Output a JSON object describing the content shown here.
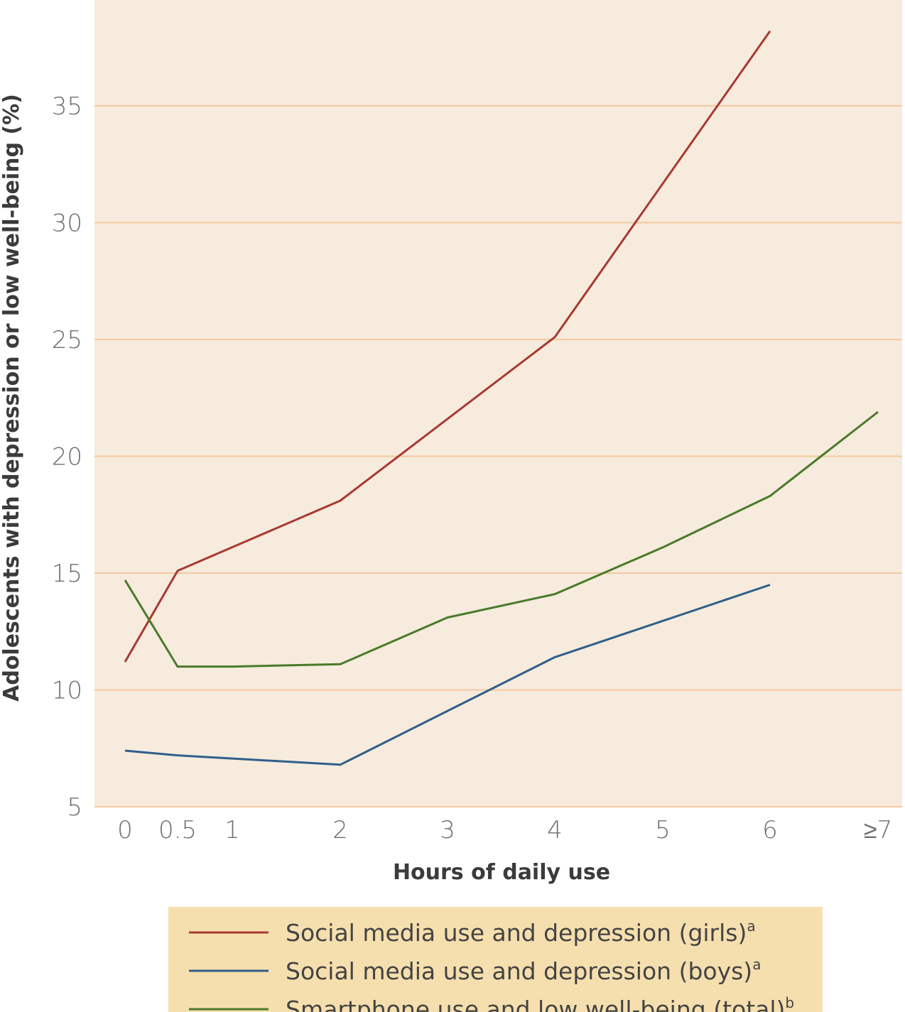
{
  "chart_data": {
    "type": "line",
    "xlabel": "Hours of daily use",
    "ylabel": "Adolescents with depression or low well-being (%)",
    "x": [
      0,
      0.5,
      1,
      2,
      3,
      4,
      5,
      6,
      7
    ],
    "x_tick_labels": [
      "0",
      "0.5",
      "1",
      "2",
      "3",
      "4",
      "5",
      "6",
      "≥7"
    ],
    "y_ticks": [
      5,
      10,
      15,
      20,
      25,
      30,
      35
    ],
    "ylim": [
      5,
      39.5
    ],
    "grid": true,
    "legend_position": "bottom",
    "series": [
      {
        "name": "Social media use and depression (girls)",
        "footnote": "a",
        "color": "#a83a32",
        "x": [
          0,
          0.5,
          2,
          4,
          6
        ],
        "y": [
          11.2,
          15.1,
          18.1,
          25.1,
          38.2
        ]
      },
      {
        "name": "Social media use and depression (boys)",
        "footnote": "a",
        "color": "#2f5f8a",
        "x": [
          0,
          0.5,
          2,
          4,
          6
        ],
        "y": [
          7.4,
          7.2,
          6.8,
          11.4,
          14.5
        ]
      },
      {
        "name": "Smartphone use and low well-being (total)",
        "footnote": "b",
        "color": "#4a7a2a",
        "x": [
          0,
          0.5,
          1,
          2,
          3,
          4,
          5,
          6,
          7
        ],
        "y": [
          14.7,
          11.0,
          11.0,
          11.1,
          13.1,
          14.1,
          16.1,
          18.3,
          21.9
        ]
      }
    ]
  },
  "colors": {
    "plot_background": "#f6ebdc",
    "gridline": "#f2c9a0",
    "legend_background": "#f6dfae"
  }
}
